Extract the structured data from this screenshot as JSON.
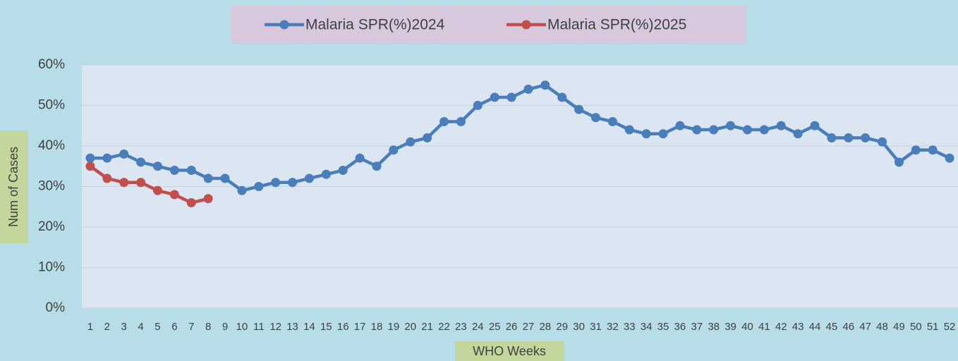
{
  "chart_data": {
    "type": "line",
    "categories": [
      "1",
      "2",
      "3",
      "4",
      "5",
      "6",
      "7",
      "8",
      "9",
      "10",
      "11",
      "12",
      "13",
      "14",
      "15",
      "16",
      "17",
      "18",
      "19",
      "20",
      "21",
      "22",
      "23",
      "24",
      "25",
      "26",
      "27",
      "28",
      "29",
      "30",
      "31",
      "32",
      "33",
      "34",
      "35",
      "36",
      "37",
      "38",
      "39",
      "40",
      "41",
      "42",
      "43",
      "44",
      "45",
      "46",
      "47",
      "48",
      "49",
      "50",
      "51",
      "52"
    ],
    "series": [
      {
        "name": "Malaria SPR(%)2024",
        "color": "#4a7ebb",
        "values": [
          37,
          37,
          38,
          36,
          35,
          34,
          34,
          32,
          32,
          29,
          30,
          31,
          31,
          32,
          33,
          34,
          37,
          35,
          39,
          41,
          42,
          46,
          46,
          50,
          52,
          52,
          54,
          55,
          52,
          49,
          47,
          46,
          44,
          43,
          43,
          45,
          44,
          44,
          45,
          44,
          44,
          45,
          43,
          45,
          42,
          42,
          42,
          41,
          36,
          39,
          39,
          37
        ]
      },
      {
        "name": "Malaria SPR(%)2025",
        "color": "#c0504d",
        "values": [
          35,
          32,
          31,
          31,
          29,
          28,
          26,
          27,
          null,
          null,
          null,
          null,
          null,
          null,
          null,
          null,
          null,
          null,
          null,
          null,
          null,
          null,
          null,
          null,
          null,
          null,
          null,
          null,
          null,
          null,
          null,
          null,
          null,
          null,
          null,
          null,
          null,
          null,
          null,
          null,
          null,
          null,
          null,
          null,
          null,
          null,
          null,
          null,
          null,
          null,
          null,
          null
        ]
      }
    ],
    "ylim": [
      0,
      60
    ],
    "yticks": [
      {
        "value": 0,
        "label": "0%"
      },
      {
        "value": 10,
        "label": "10%"
      },
      {
        "value": 20,
        "label": "20%"
      },
      {
        "value": 30,
        "label": "30%"
      },
      {
        "value": 40,
        "label": "40%"
      },
      {
        "value": 50,
        "label": "50%"
      },
      {
        "value": 60,
        "label": "60%"
      }
    ],
    "grid": true,
    "legend": "top",
    "xlabel": "WHO Weeks",
    "ylabel": "Num of Cases"
  }
}
